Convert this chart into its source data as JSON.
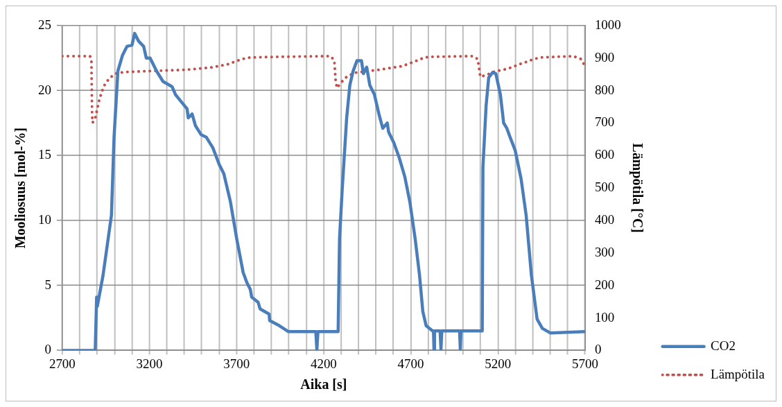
{
  "chart_data": {
    "type": "line",
    "xlabel": "Aika [s]",
    "ylabel": "Mooliosuus [mol-%]",
    "y2label": "Lämpötila [°C]",
    "xlim": [
      2700,
      5700
    ],
    "xticks": [
      2700,
      {
        "value": 2800,
        "label": null
      },
      {
        "value": 2900,
        "label": null
      },
      {
        "value": 3000,
        "label": null
      },
      {
        "value": 3100,
        "label": null
      },
      3200,
      {
        "value": 3300,
        "label": null
      },
      {
        "value": 3400,
        "label": null
      },
      {
        "value": 3500,
        "label": null
      },
      {
        "value": 3600,
        "label": null
      },
      3700,
      {
        "value": 3800,
        "label": null
      },
      {
        "value": 3900,
        "label": null
      },
      {
        "value": 4000,
        "label": null
      },
      {
        "value": 4100,
        "label": null
      },
      4200,
      {
        "value": 4300,
        "label": null
      },
      {
        "value": 4400,
        "label": null
      },
      {
        "value": 4500,
        "label": null
      },
      {
        "value": 4600,
        "label": null
      },
      4700,
      {
        "value": 4800,
        "label": null
      },
      {
        "value": 4900,
        "label": null
      },
      {
        "value": 5000,
        "label": null
      },
      {
        "value": 5100,
        "label": null
      },
      5200,
      {
        "value": 5300,
        "label": null
      },
      {
        "value": 5400,
        "label": null
      },
      {
        "value": 5500,
        "label": null
      },
      {
        "value": 5600,
        "label": null
      },
      5700
    ],
    "ylim": [
      0,
      25
    ],
    "yticks": [
      0,
      5,
      10,
      15,
      20,
      25
    ],
    "y2lim": [
      0,
      1000
    ],
    "y2ticks": [
      0,
      100,
      200,
      300,
      400,
      500,
      600,
      700,
      800,
      900,
      1000
    ],
    "grid": true,
    "legend": "bottom right",
    "marker": "none",
    "series": [
      {
        "name": "CO2",
        "color": "#4a7ebb",
        "line_style": "solid",
        "x": [
          2700,
          2889,
          2897,
          2901,
          2934,
          2982,
          2997,
          3019,
          3045,
          3071,
          3100,
          3115,
          3138,
          3167,
          3182,
          3204,
          3241,
          3278,
          3330,
          3349,
          3379,
          3416,
          3423,
          3445,
          3464,
          3497,
          3527,
          3564,
          3601,
          3627,
          3664,
          3701,
          3738,
          3760,
          3779,
          3787,
          3824,
          3835,
          3887,
          3890,
          3946,
          3998,
          4146,
          4155,
          4161,
          4167,
          4268,
          4283,
          4291,
          4306,
          4332,
          4350,
          4369,
          4391,
          4417,
          4428,
          4447,
          4465,
          4491,
          4517,
          4539,
          4565,
          4573,
          4602,
          4632,
          4665,
          4695,
          4725,
          4750,
          4769,
          4788,
          4825,
          4830,
          4833,
          4836,
          4868,
          4873,
          4878,
          4980,
          4984,
          4988,
          5110,
          5114,
          5132,
          5147,
          5170,
          5188,
          5214,
          5233,
          5251,
          5270,
          5299,
          5333,
          5362,
          5392,
          5425,
          5455,
          5500,
          5700
        ],
        "values": [
          0,
          0,
          4.1,
          3.4,
          5.8,
          10.4,
          16.4,
          21.5,
          22.7,
          23.4,
          23.5,
          24.4,
          23.8,
          23.4,
          22.5,
          22.5,
          21.5,
          20.7,
          20.3,
          19.7,
          19.2,
          18.6,
          17.9,
          18.2,
          17.3,
          16.6,
          16.4,
          15.6,
          14.3,
          13.6,
          11.5,
          8.6,
          6.0,
          5.2,
          4.7,
          4.1,
          3.7,
          3.2,
          2.8,
          2.3,
          1.9,
          1.45,
          1.45,
          1.45,
          0.05,
          1.45,
          1.45,
          1.45,
          8.6,
          12.3,
          17.9,
          20.4,
          21.5,
          22.3,
          22.3,
          21.3,
          21.8,
          20.4,
          19.7,
          18.2,
          17.1,
          17.5,
          16.8,
          16.0,
          14.9,
          13.4,
          11.4,
          8.6,
          5.8,
          3.0,
          1.9,
          1.5,
          1.5,
          0.1,
          1.5,
          1.5,
          0.1,
          1.5,
          1.5,
          0.1,
          1.5,
          1.5,
          14.1,
          18.8,
          21.0,
          21.4,
          21.3,
          19.7,
          17.5,
          17.1,
          16.4,
          15.4,
          13.2,
          10.4,
          5.8,
          2.4,
          1.7,
          1.35,
          1.45
        ]
      },
      {
        "name": "Lämpötila",
        "color": "#c0504d",
        "line_style": "dotted",
        "axis": "y2",
        "x": [
          2700,
          2859,
          2867,
          2869,
          2871,
          2874,
          2889,
          2900,
          2911,
          2926,
          2945,
          2974,
          3011,
          3056,
          3193,
          3416,
          3553,
          3645,
          3731,
          3779,
          3961,
          4239,
          4261,
          4265,
          4268,
          4276,
          4302,
          4335,
          4380,
          4517,
          4602,
          4650,
          4695,
          4739,
          4780,
          4825,
          5054,
          5084,
          5091,
          5099,
          5147,
          5188,
          5233,
          5277,
          5318,
          5362,
          5407,
          5447,
          5633,
          5677,
          5700
        ],
        "values": [
          906,
          906,
          895,
          810,
          728,
          701,
          715,
          742,
          768,
          795,
          820,
          840,
          853,
          857,
          860,
          864,
          871,
          880,
          897,
          902,
          904,
          906,
          893,
          862,
          835,
          808,
          826,
          844,
          855,
          864,
          871,
          875,
          884,
          893,
          902,
          904,
          906,
          897,
          871,
          842,
          851,
          860,
          864,
          871,
          880,
          888,
          897,
          902,
          906,
          897,
          875
        ]
      }
    ]
  }
}
